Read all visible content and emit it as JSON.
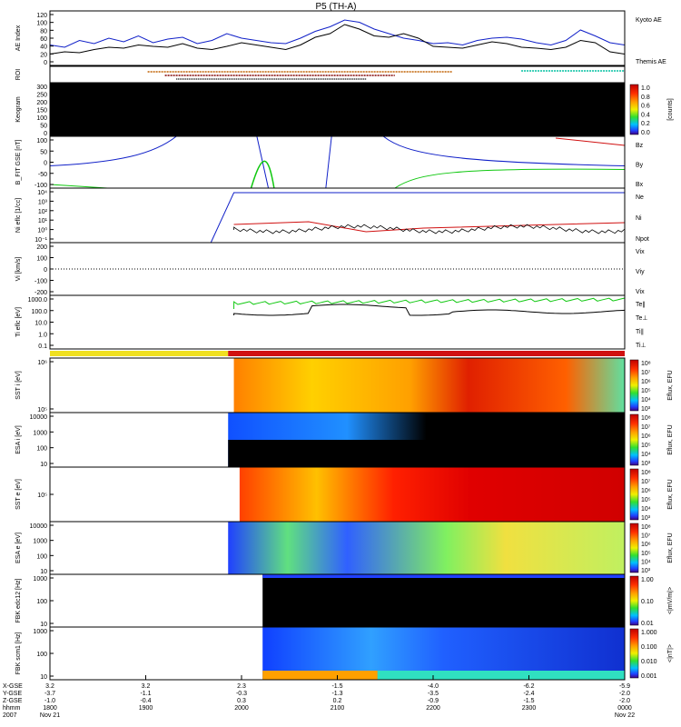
{
  "title": "P5 (TH-A)",
  "colors": {
    "blue": "#1020c8",
    "red": "#d01010",
    "green": "#10c810",
    "black": "#000000",
    "yellow": "#f0e020"
  },
  "chart_data": [
    {
      "type": "line",
      "panel": "ae",
      "ylabel": "AE Index",
      "ticks": [
        "120",
        "100",
        "80",
        "60",
        "40",
        "20",
        "0"
      ],
      "ylim": [
        0,
        120
      ],
      "legend": [
        {
          "name": "Kyoto AE",
          "color": "blue"
        },
        {
          "name": "Themis AE",
          "color": "black"
        }
      ],
      "series": [
        {
          "name": "Kyoto AE",
          "values": [
            45,
            40,
            55,
            48,
            60,
            52,
            65,
            50,
            58,
            62,
            48,
            55,
            70,
            60,
            55,
            50,
            48,
            60,
            75,
            85,
            100,
            95,
            80,
            70,
            60,
            55,
            48,
            50,
            45,
            55,
            60,
            62,
            58,
            50,
            45,
            55,
            78,
            65,
            50,
            45
          ]
        },
        {
          "name": "Themis AE",
          "values": [
            25,
            30,
            28,
            35,
            40,
            38,
            45,
            42,
            40,
            48,
            38,
            35,
            42,
            50,
            45,
            40,
            35,
            45,
            62,
            70,
            90,
            80,
            65,
            62,
            70,
            60,
            42,
            40,
            38,
            45,
            52,
            48,
            40,
            38,
            35,
            40,
            55,
            50,
            30,
            25
          ]
        }
      ]
    },
    {
      "type": "table",
      "panel": "roi",
      "ylabel": "ROI"
    },
    {
      "type": "heatmap",
      "panel": "keogram",
      "ylabel": "Keogram",
      "ticks": [
        "300",
        "250",
        "200",
        "150",
        "100",
        "50",
        "0"
      ],
      "colorbar": {
        "label": "[counts]",
        "ticks": [
          "1.0",
          "0.8",
          "0.6",
          "0.4",
          "0.2",
          "0.0"
        ]
      }
    },
    {
      "type": "line",
      "panel": "bfit",
      "ylabel": "B_FIT GSE [nT]",
      "ticks": [
        "100",
        "50",
        "0",
        "-50",
        "-100"
      ],
      "ylim": [
        -100,
        100
      ],
      "legend": [
        {
          "name": "Bz",
          "color": "red"
        },
        {
          "name": "By",
          "color": "green"
        },
        {
          "name": "Bx",
          "color": "blue"
        }
      ]
    },
    {
      "type": "line",
      "panel": "ni",
      "ylabel": "Ni eflc [1/cc]",
      "ticks": [
        "10⁴",
        "10³",
        "10²",
        "10¹",
        "10⁰",
        "10⁻¹"
      ],
      "legend": [
        {
          "name": "Ne",
          "color": "red"
        },
        {
          "name": "Ni",
          "color": "black"
        },
        {
          "name": "Npot",
          "color": "blue"
        }
      ]
    },
    {
      "type": "line",
      "panel": "vi",
      "ylabel": "Vi [km/s]",
      "ticks": [
        "200",
        "100",
        "0",
        "-100",
        "-200"
      ],
      "legend": [
        {
          "name": "Vix",
          "color": "red"
        },
        {
          "name": "Viy",
          "color": "green"
        },
        {
          "name": "Vix",
          "color": "blue"
        }
      ]
    },
    {
      "type": "line",
      "panel": "ti",
      "ylabel": "Ti eflc [eV]",
      "ticks": [
        "1000.0",
        "100.0",
        "10.0",
        "1.0",
        "0.1"
      ],
      "legend": [
        {
          "name": "Te∥",
          "color": "black"
        },
        {
          "name": "Te⊥",
          "color": "red"
        },
        {
          "name": "Ti∥",
          "color": "green"
        },
        {
          "name": "Ti⊥",
          "color": "blue"
        }
      ]
    },
    {
      "type": "heatmap",
      "panel": "sst_i",
      "ylabel": "SST i [eV]",
      "ticks": [
        "10⁶",
        "10⁵"
      ],
      "colorbar": {
        "label": "Eflux, EFU",
        "ticks": [
          "10⁸",
          "10⁷",
          "10⁶",
          "10⁵",
          "10⁴",
          "10³"
        ]
      }
    },
    {
      "type": "heatmap",
      "panel": "esa_i",
      "ylabel": "ESA i [eV]",
      "ticks": [
        "10000",
        "1000",
        "100",
        "10"
      ],
      "colorbar": {
        "label": "Eflux, EFU",
        "ticks": [
          "10⁸",
          "10⁷",
          "10⁶",
          "10⁵",
          "10⁴",
          "10³"
        ]
      }
    },
    {
      "type": "heatmap",
      "panel": "sst_e",
      "ylabel": "SST e [eV]",
      "ticks": [
        "10⁵"
      ],
      "colorbar": {
        "label": "Eflux, EFU",
        "ticks": [
          "10⁸",
          "10⁷",
          "10⁶",
          "10⁵",
          "10⁴",
          "10³"
        ]
      }
    },
    {
      "type": "heatmap",
      "panel": "esa_e",
      "ylabel": "ESA e [eV]",
      "ticks": [
        "10000",
        "1000",
        "100",
        "10"
      ],
      "colorbar": {
        "label": "Eflux, EFU",
        "ticks": [
          "10⁸",
          "10⁷",
          "10⁶",
          "10⁵",
          "10⁴",
          "10³"
        ]
      }
    },
    {
      "type": "heatmap",
      "panel": "fbk_e",
      "ylabel": "FBK edc12 [Hz]",
      "ticks": [
        "1000",
        "100",
        "10"
      ],
      "colorbar": {
        "label": "<|mV/m|>",
        "ticks": [
          "1.00",
          "0.10",
          "0.01"
        ]
      }
    },
    {
      "type": "heatmap",
      "panel": "fbk_b",
      "ylabel": "FBK scm1 [Hz]",
      "ticks": [
        "1000",
        "100",
        "10"
      ],
      "colorbar": {
        "label": "<|nT|>",
        "ticks": [
          "1.000",
          "0.100",
          "0.010",
          "0.001"
        ]
      }
    }
  ],
  "xaxis": {
    "row_labels": [
      "X-GSE",
      "Y-GSE",
      "Z-GSE",
      "hhmm",
      "2007"
    ],
    "columns": [
      {
        "x": "3.2",
        "y": "-3.7",
        "z": "-1.0",
        "t": "1800",
        "d": "Nov 21"
      },
      {
        "x": "3.2",
        "y": "-1.1",
        "z": "-0.4",
        "t": "1900",
        "d": ""
      },
      {
        "x": "2.3",
        "y": "-0.3",
        "z": "0.3",
        "t": "2000",
        "d": ""
      },
      {
        "x": "-1.5",
        "y": "-1.3",
        "z": "0.2",
        "t": "2100",
        "d": ""
      },
      {
        "x": "-4.0",
        "y": "-3.5",
        "z": "-0.9",
        "t": "2200",
        "d": ""
      },
      {
        "x": "-6.2",
        "y": "-2.4",
        "z": "-1.5",
        "t": "2300",
        "d": ""
      },
      {
        "x": "-5.9",
        "y": "-2.0",
        "z": "-2.0",
        "t": "0000",
        "d": "Nov 22"
      }
    ]
  }
}
